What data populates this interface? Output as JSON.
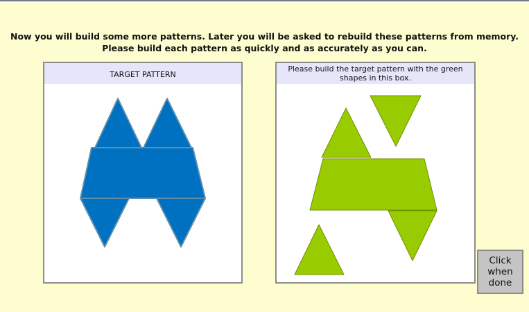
{
  "colors": {
    "background": "#fdfdd0",
    "target_shape": "#0070c0",
    "target_outline": "#5c8fb0",
    "build_shape": "#99cc00",
    "header_bg": "#e6e6fa",
    "button_bg": "#c4c4c4"
  },
  "instructions": {
    "line1": "Now you will build some more patterns. Later you will be asked to rebuild these patterns from memory.",
    "line2": "Please build each pattern as quickly and as accurately as you can."
  },
  "target_panel": {
    "header": "TARGET PATTERN"
  },
  "build_panel": {
    "header_line1": "Please build the target pattern with the green",
    "header_line2": "shapes in this box."
  },
  "done_button": {
    "line1": "Click",
    "line2": "when",
    "line3": "done"
  }
}
